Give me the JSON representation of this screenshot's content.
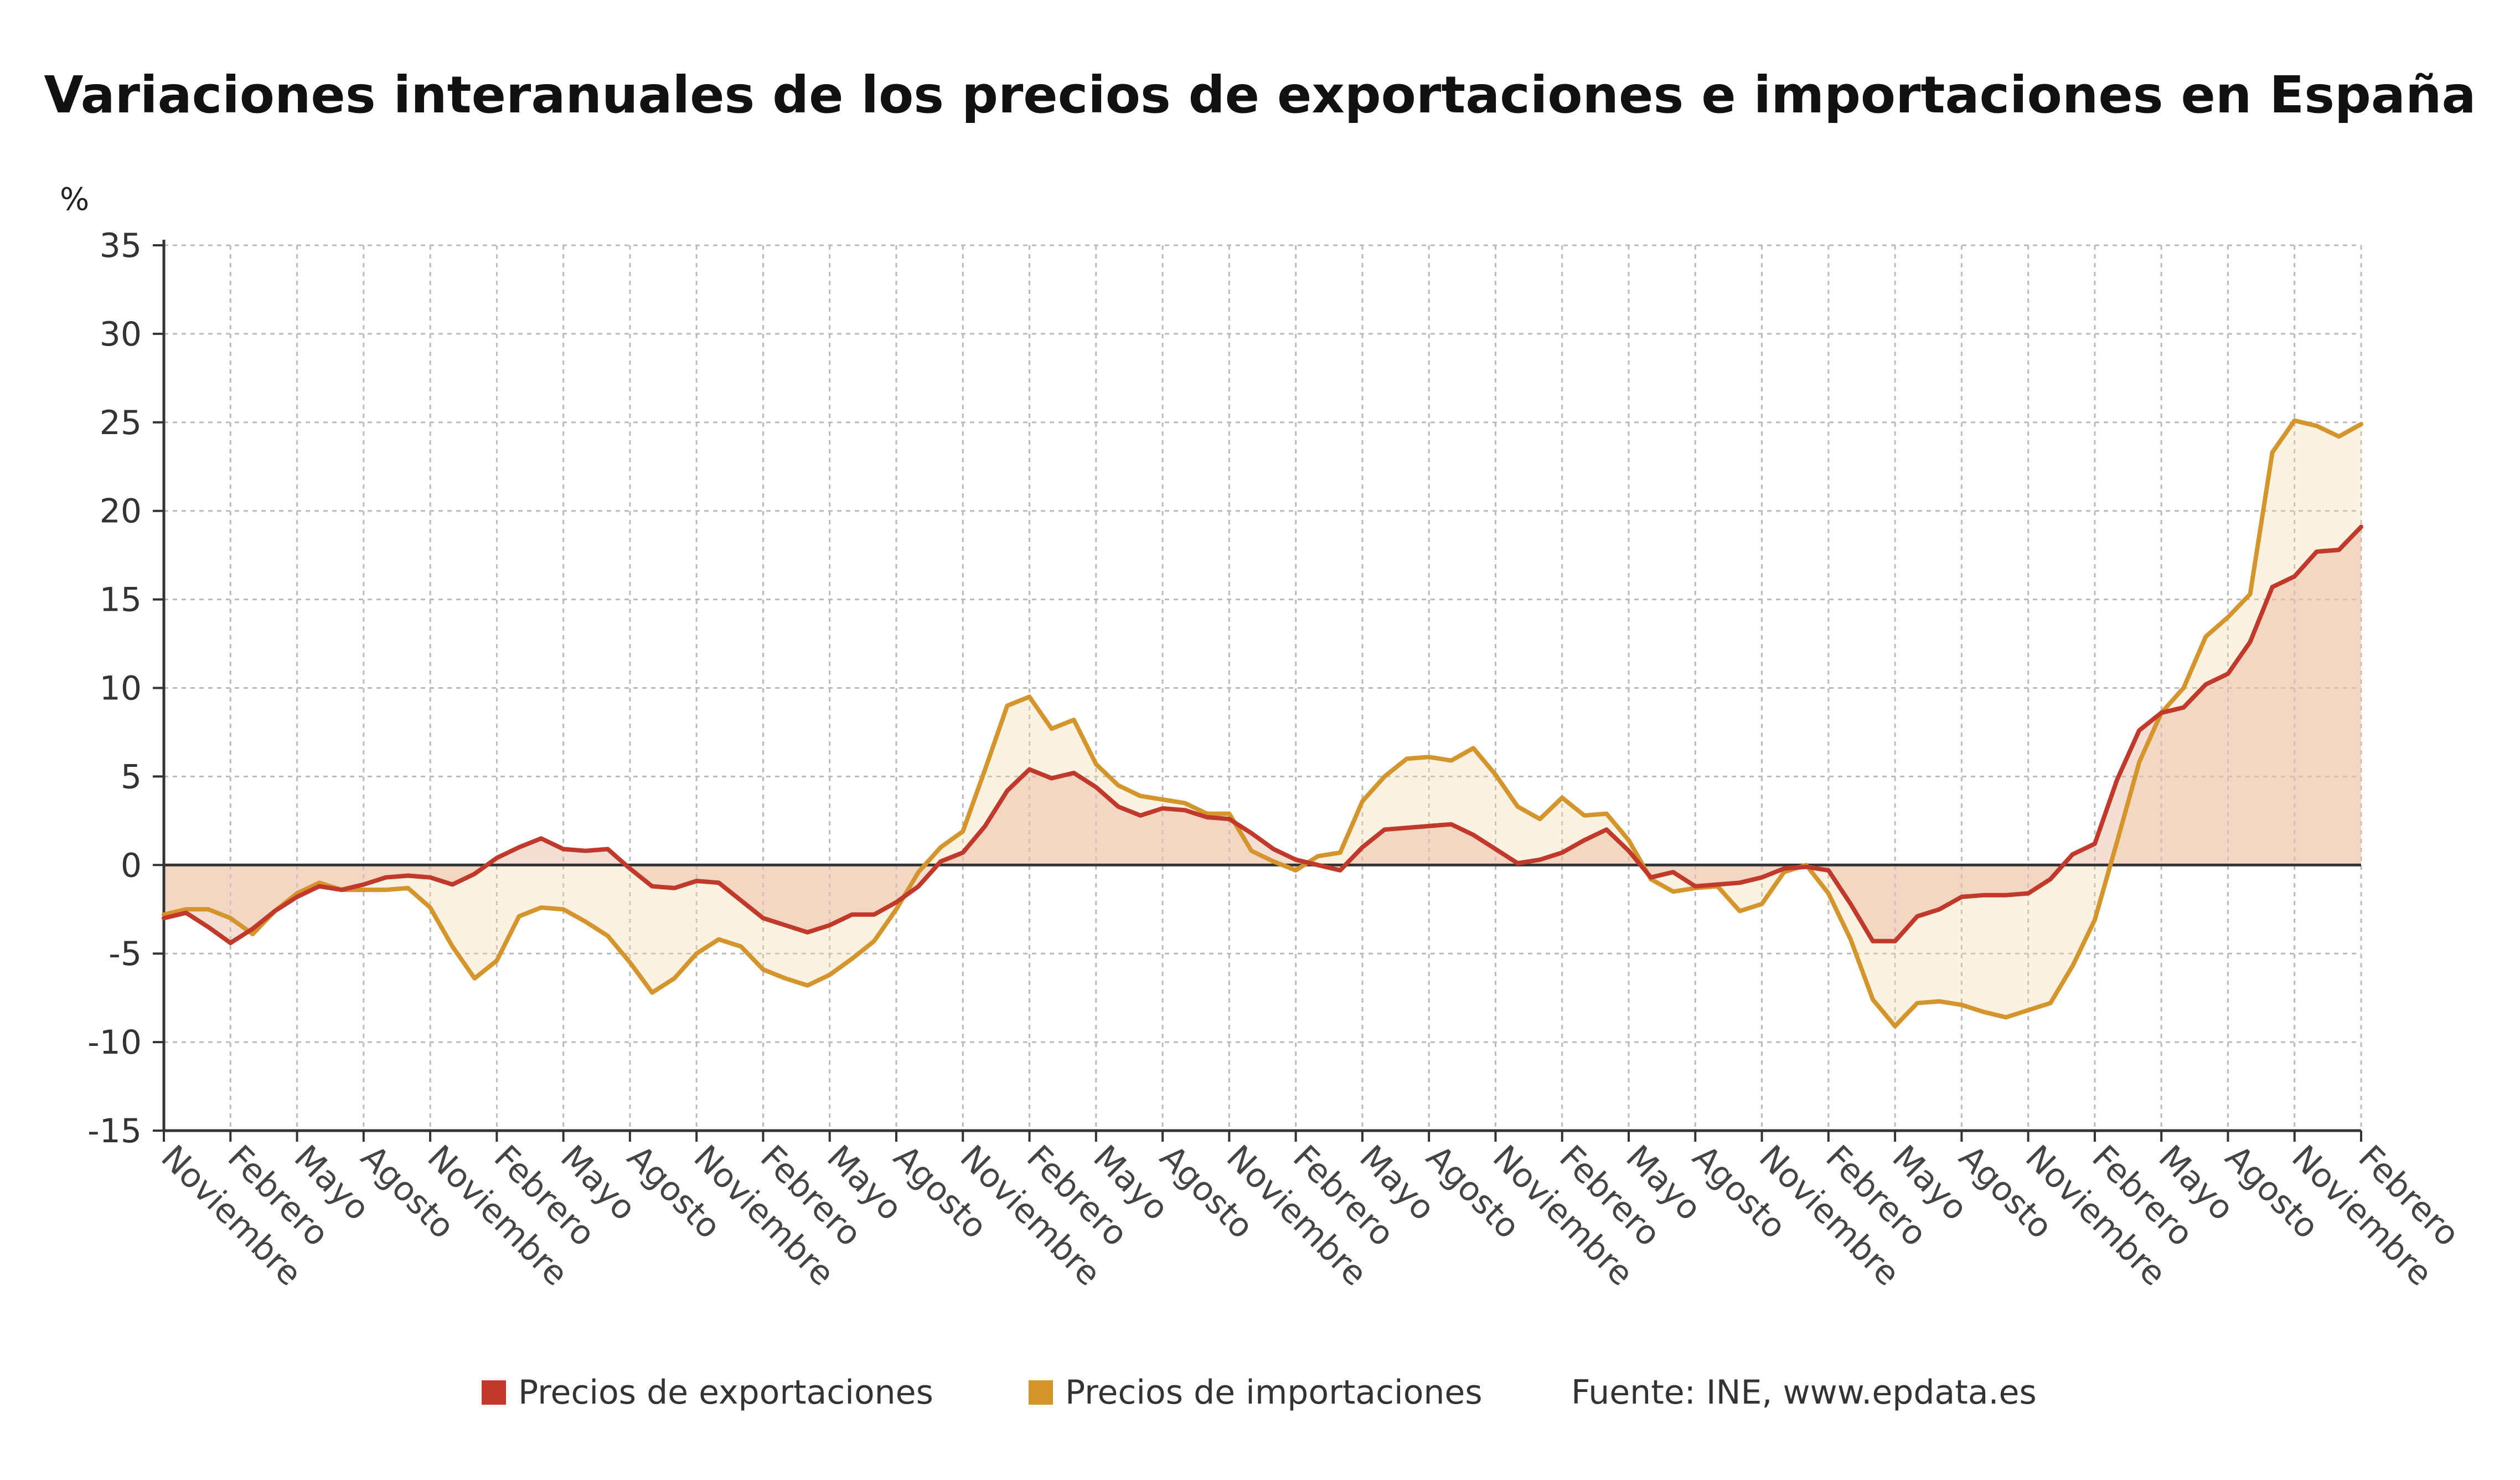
{
  "title": "Variaciones interanuales de los precios de exportaciones e importaciones en España",
  "unit_label": "%",
  "legend": {
    "exports_label": "Precios de exportaciones",
    "imports_label": "Precios de importaciones",
    "source": "Fuente: INE, www.epdata.es"
  },
  "colors": {
    "exports": "#c0392b",
    "imports": "#d4952c",
    "zero_line": "#333333",
    "grid": "#bbbbbb"
  },
  "chart_data": {
    "type": "line",
    "title": "Variaciones interanuales de los precios de exportaciones e importaciones en España",
    "ylabel": "%",
    "ylim": [
      -15,
      35
    ],
    "y_ticks": [
      35,
      30,
      25,
      20,
      15,
      10,
      5,
      0,
      -5,
      -10,
      -15
    ],
    "x_ticks": [
      "Noviembre",
      "Febrero",
      "Mayo",
      "Agosto",
      "Noviembre",
      "Febrero",
      "Mayo",
      "Agosto",
      "Noviembre",
      "Febrero",
      "Mayo",
      "Agosto",
      "Noviembre",
      "Febrero",
      "Mayo",
      "Agosto",
      "Noviembre",
      "Febrero",
      "Mayo",
      "Agosto",
      "Noviembre",
      "Febrero",
      "Mayo",
      "Agosto",
      "Noviembre",
      "Febrero",
      "Mayo",
      "Agosto",
      "Noviembre",
      "Febrero",
      "Mayo",
      "Agosto",
      "Noviembre",
      "Febrero"
    ],
    "grid": true,
    "legend_position": "bottom",
    "series": [
      {
        "name": "Precios de exportaciones",
        "values": [
          -3.0,
          -2.7,
          -3.5,
          -4.4,
          -3.6,
          -2.6,
          -1.8,
          -1.2,
          -1.4,
          -1.1,
          -0.7,
          -0.6,
          -0.7,
          -1.1,
          -0.5,
          0.4,
          1.0,
          1.5,
          0.9,
          0.8,
          0.9,
          -0.2,
          -1.2,
          -1.3,
          -0.9,
          -1.0,
          -2.0,
          -3.0,
          -3.4,
          -3.8,
          -3.4,
          -2.8,
          -2.8,
          -2.1,
          -1.2,
          0.2,
          0.7,
          2.2,
          4.2,
          5.4,
          4.9,
          5.2,
          4.4,
          3.3,
          2.8,
          3.2,
          3.1,
          2.7,
          2.6,
          1.8,
          0.9,
          0.3,
          0.0,
          -0.3,
          1.0,
          2.0,
          2.1,
          2.2,
          2.3,
          1.7,
          0.9,
          0.1,
          0.3,
          0.7,
          1.4,
          2.0,
          0.8,
          -0.7,
          -0.4,
          -1.2,
          -1.1,
          -1.0,
          -0.7,
          -0.2,
          -0.1,
          -0.3,
          -2.2,
          -4.3,
          -4.3,
          -2.9,
          -2.5,
          -1.8,
          -1.7,
          -1.7,
          -1.6,
          -0.8,
          0.6,
          1.2,
          4.8,
          7.6,
          8.6,
          8.9,
          10.2,
          10.8,
          12.6,
          15.7,
          16.3,
          17.7,
          17.8,
          19.1
        ]
      },
      {
        "name": "Precios de importaciones",
        "values": [
          -2.8,
          -2.5,
          -2.5,
          -3.0,
          -3.9,
          -2.6,
          -1.6,
          -1.0,
          -1.4,
          -1.4,
          -1.4,
          -1.3,
          -2.4,
          -4.6,
          -6.4,
          -5.4,
          -2.9,
          -2.4,
          -2.5,
          -3.2,
          -4.0,
          -5.5,
          -7.2,
          -6.4,
          -5.0,
          -4.2,
          -4.6,
          -5.9,
          -6.4,
          -6.8,
          -6.2,
          -5.3,
          -4.3,
          -2.5,
          -0.4,
          1.0,
          1.9,
          5.4,
          9.0,
          9.5,
          7.7,
          8.2,
          5.7,
          4.5,
          3.9,
          3.7,
          3.5,
          2.9,
          2.9,
          0.8,
          0.2,
          -0.3,
          0.5,
          0.7,
          3.6,
          5.0,
          6.0,
          6.1,
          5.9,
          6.6,
          5.1,
          3.3,
          2.6,
          3.8,
          2.8,
          2.9,
          1.4,
          -0.8,
          -1.5,
          -1.3,
          -1.2,
          -2.6,
          -2.2,
          -0.4,
          0.0,
          -1.6,
          -4.2,
          -7.6,
          -9.1,
          -7.8,
          -7.7,
          -7.9,
          -8.3,
          -8.6,
          -8.2,
          -7.8,
          -5.7,
          -3.1,
          1.3,
          5.8,
          8.6,
          10.0,
          12.9,
          14.0,
          15.3,
          23.3,
          25.1,
          24.8,
          24.2,
          24.9
        ]
      }
    ]
  }
}
